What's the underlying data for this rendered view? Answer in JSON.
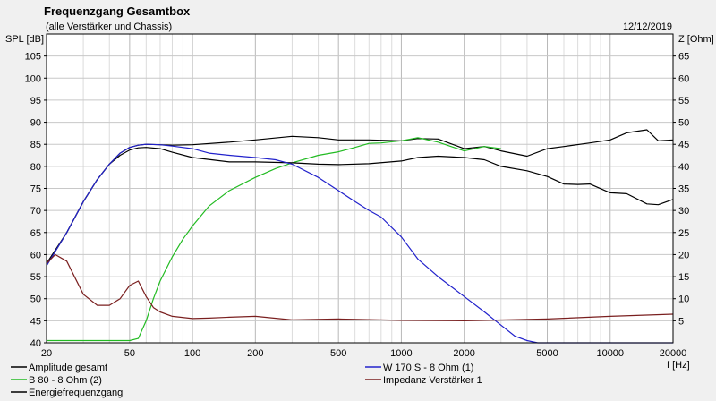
{
  "chart_data": {
    "type": "line",
    "title": "Frequenzgang Gesamtbox",
    "subtitle": "(alle Verstärker und Chassis)",
    "date": "12/12/2019",
    "ylabel_left": "SPL [dB]",
    "ylabel_right": "Z [Ohm]",
    "xlabel": "f [Hz]",
    "x_scale": "log",
    "xlim": [
      20,
      20000
    ],
    "ylim_left": [
      40,
      110
    ],
    "ylim_right": [
      0,
      70
    ],
    "grid": true,
    "x_ticks": [
      20,
      50,
      100,
      200,
      500,
      1000,
      2000,
      5000,
      10000,
      20000
    ],
    "x_tick_labels": [
      "20",
      "50",
      "100",
      "200",
      "500",
      "1000",
      "2000",
      "5000",
      "10000",
      "20000"
    ],
    "y_left_ticks": [
      40,
      45,
      50,
      55,
      60,
      65,
      70,
      75,
      80,
      85,
      90,
      95,
      100,
      105
    ],
    "y_right_ticks": [
      5,
      10,
      15,
      20,
      25,
      30,
      35,
      40,
      45,
      50,
      55,
      60,
      65
    ],
    "legend_position": "bottom",
    "series": [
      {
        "name": "Amplitude gesamt",
        "color": "#000000",
        "axis": "left",
        "x": [
          20,
          25,
          30,
          35,
          40,
          45,
          50,
          55,
          60,
          70,
          80,
          100,
          150,
          200,
          300,
          400,
          500,
          700,
          1000,
          1200,
          1500,
          2000,
          2500,
          3000,
          4000,
          5000,
          6000,
          8000,
          10000,
          12000,
          15000,
          17000,
          20000
        ],
        "y": [
          57.5,
          65,
          72,
          77,
          80.5,
          83,
          84.3,
          84.8,
          85,
          84.9,
          84.8,
          84.9,
          85.5,
          86,
          86.8,
          86.5,
          86,
          86,
          85.8,
          86.3,
          86.2,
          84,
          84.5,
          83.5,
          82.3,
          84,
          84.5,
          85.3,
          86,
          87.6,
          88.3,
          85.8,
          86
        ]
      },
      {
        "name": "B 80 - 8 Ohm (2)",
        "color": "#22bb22",
        "axis": "left",
        "x": [
          20,
          40,
          50,
          55,
          60,
          65,
          70,
          80,
          90,
          100,
          120,
          150,
          200,
          250,
          300,
          400,
          500,
          600,
          700,
          800,
          1000,
          1200,
          1500,
          2000,
          2500,
          3000
        ],
        "y": [
          40.5,
          40.5,
          40.5,
          41,
          45,
          50,
          54,
          59.5,
          63.5,
          66.5,
          71,
          74.5,
          77.5,
          79.5,
          80.8,
          82.5,
          83.3,
          84.3,
          85.2,
          85.3,
          85.8,
          86.5,
          85.5,
          83.5,
          84.5,
          84
        ]
      },
      {
        "name": "Energiefrequenzgang",
        "color": "#000000",
        "axis": "left",
        "x": [
          20,
          25,
          30,
          35,
          40,
          45,
          50,
          55,
          60,
          70,
          80,
          100,
          150,
          200,
          300,
          400,
          500,
          700,
          1000,
          1200,
          1500,
          2000,
          2500,
          3000,
          4000,
          5000,
          6000,
          7000,
          8000,
          10000,
          12000,
          15000,
          17000,
          20000
        ],
        "y": [
          58,
          65,
          72,
          77,
          80.5,
          82.5,
          83.7,
          84.2,
          84.3,
          84,
          83.2,
          82,
          81,
          81,
          80.8,
          80.5,
          80.4,
          80.6,
          81.2,
          82,
          82.3,
          82,
          81.5,
          80,
          79,
          77.7,
          76,
          75.9,
          76,
          74,
          73.8,
          71.5,
          71.3,
          72.5
        ]
      },
      {
        "name": "W 170 S - 8 Ohm (1)",
        "color": "#2222cc",
        "axis": "left",
        "x": [
          20,
          25,
          30,
          35,
          40,
          45,
          50,
          55,
          60,
          70,
          80,
          100,
          120,
          150,
          200,
          250,
          300,
          400,
          500,
          600,
          700,
          800,
          1000,
          1200,
          1500,
          2000,
          2500,
          3000,
          3500,
          4000,
          4500,
          5000,
          20000
        ],
        "y": [
          57.5,
          65,
          72,
          77,
          80.5,
          83,
          84.3,
          84.8,
          85,
          84.9,
          84.6,
          84,
          83,
          82.5,
          82,
          81.5,
          80.5,
          77.5,
          74.5,
          72,
          70,
          68.5,
          64,
          59,
          55,
          50.5,
          47,
          44,
          41.5,
          40.5,
          40,
          40,
          40
        ]
      },
      {
        "name": "Impedanz Verstärker 1",
        "color": "#7a1f1f",
        "axis": "right",
        "x": [
          20,
          22,
          25,
          30,
          35,
          40,
          45,
          50,
          55,
          60,
          65,
          70,
          80,
          100,
          120,
          150,
          200,
          300,
          500,
          1000,
          2000,
          5000,
          10000,
          20000
        ],
        "y": [
          18,
          20,
          18.5,
          11,
          8.5,
          8.5,
          10,
          13,
          14,
          10.5,
          8,
          7,
          6,
          5.5,
          5.6,
          5.8,
          6,
          5.2,
          5.4,
          5.1,
          5,
          5.4,
          6,
          6.5
        ]
      }
    ]
  }
}
